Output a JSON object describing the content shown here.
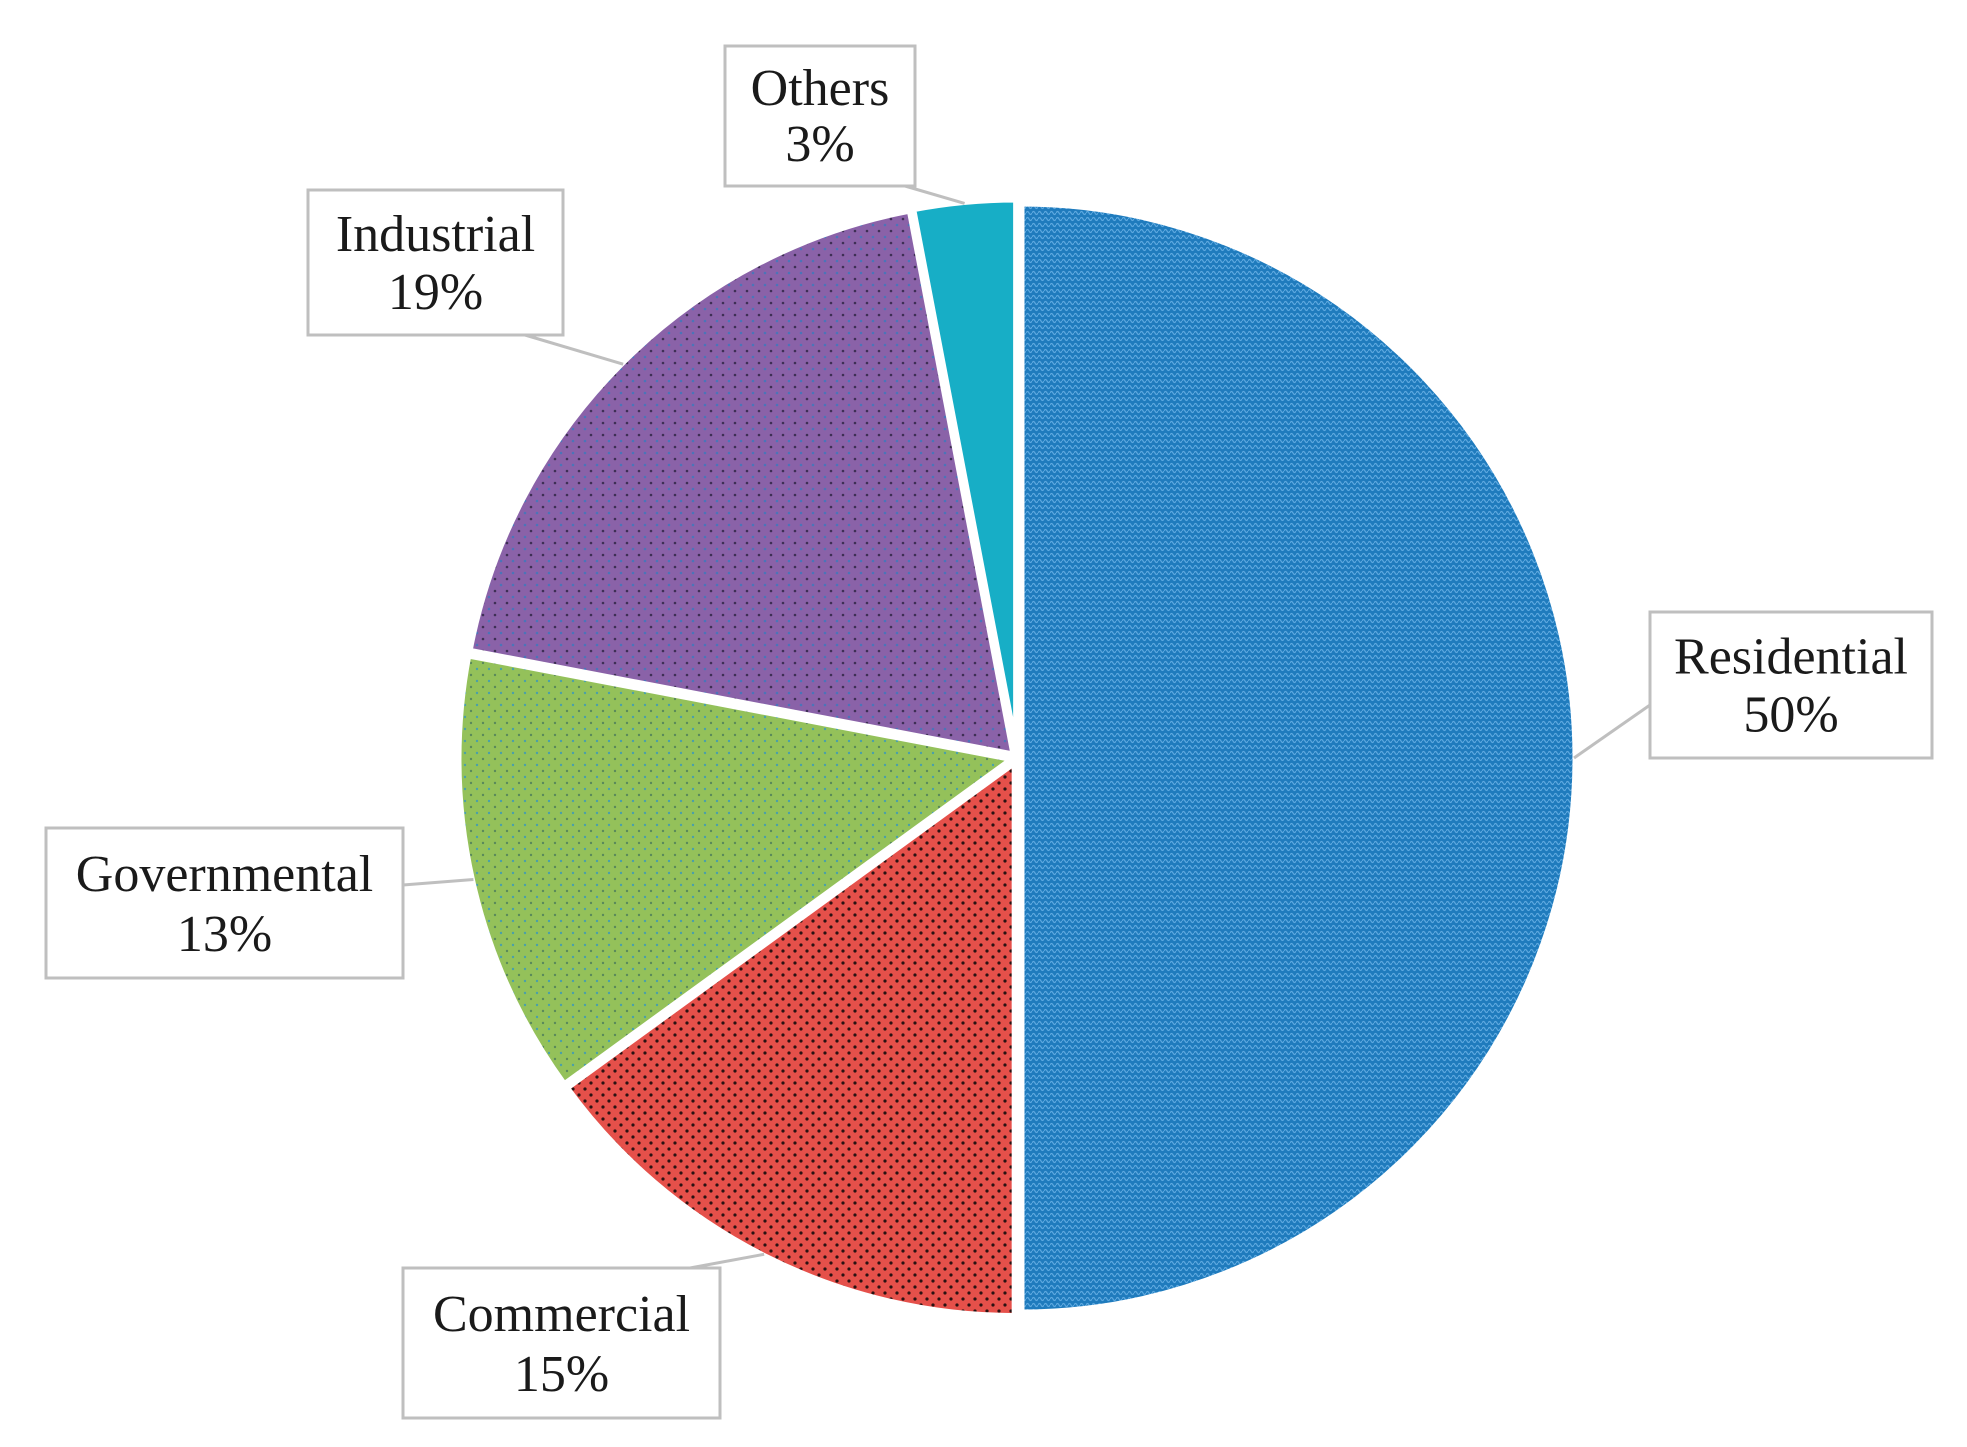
{
  "chart_data": {
    "type": "pie",
    "title": "",
    "categories": [
      "Residential",
      "Commercial",
      "Governmental",
      "Industrial",
      "Others"
    ],
    "values": [
      50,
      15,
      13,
      19,
      3
    ],
    "value_labels": [
      "50%",
      "15%",
      "13%",
      "19%",
      "3%"
    ],
    "unit": "%",
    "start_angle_deg": 0,
    "direction": "clockwise",
    "legend": "none",
    "data_labels": "callouts",
    "colors": [
      "#1f7bbd",
      "#e5504a",
      "#94c15a",
      "#8a62a8",
      "#17aec6"
    ],
    "patterns": [
      "dense-weave",
      "dots",
      "fine-dots",
      "dots",
      "solid"
    ]
  }
}
